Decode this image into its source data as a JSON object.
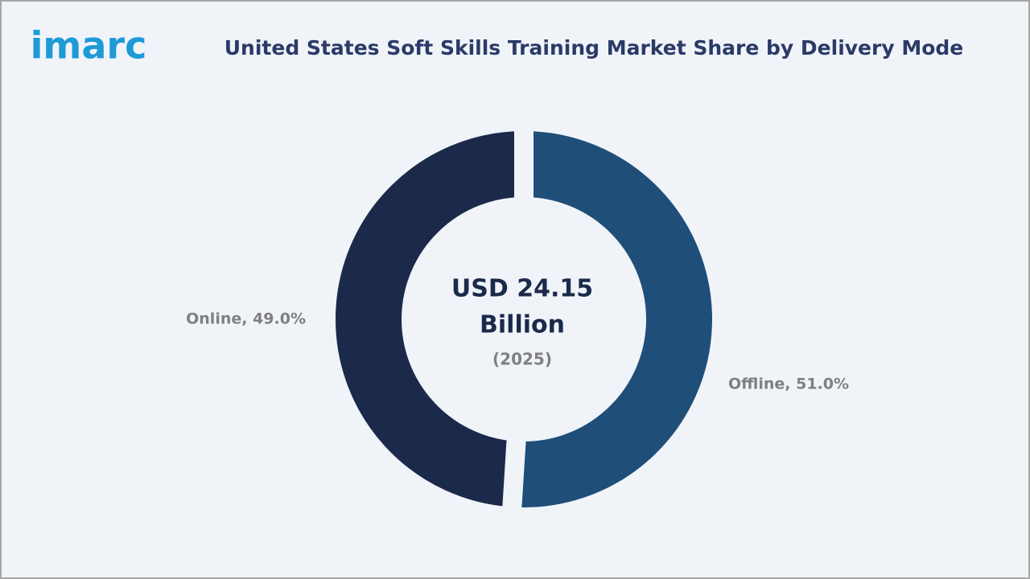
{
  "logo": "imarc",
  "chart_data": {
    "type": "donut",
    "title": "United States Soft Skills Training Market Share by Delivery Mode",
    "values": [
      51.0,
      49.0
    ],
    "value_labels": [
      "Offline, 51.0%",
      "Online, 49.0%"
    ],
    "colors": [
      "#1f4e79",
      "#1b2a4a"
    ],
    "center_label": [
      "USD 24.15",
      "Billion"
    ],
    "center_sublabel": "(2025)"
  }
}
